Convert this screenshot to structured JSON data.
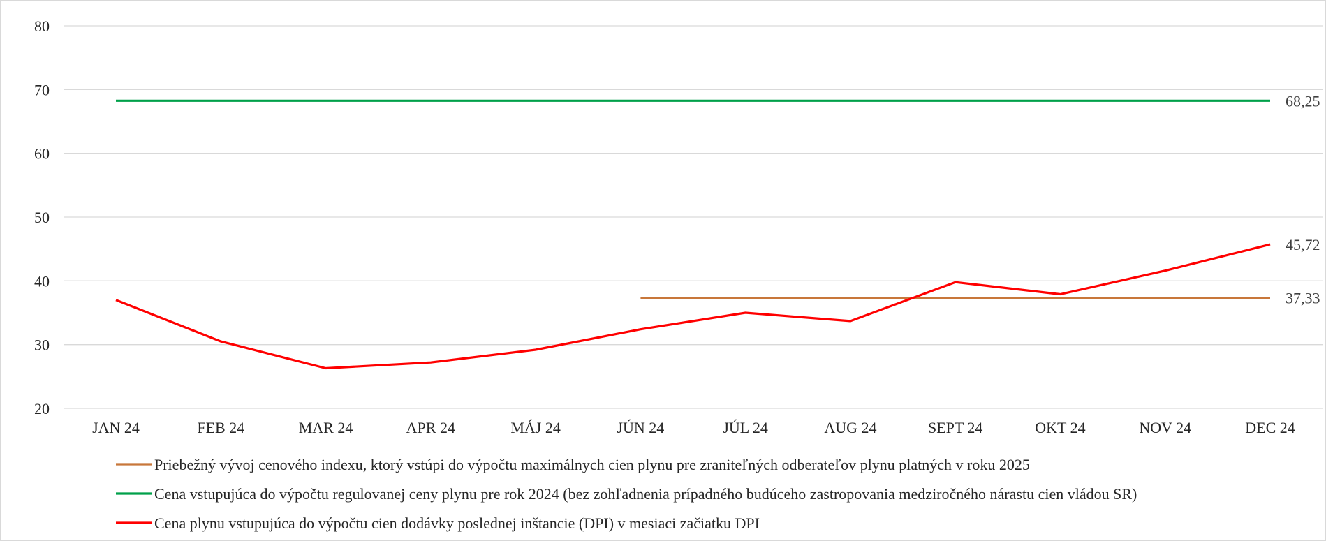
{
  "chart_data": {
    "type": "line",
    "title": "",
    "xlabel": "",
    "ylabel": "",
    "categories": [
      "JAN 24",
      "FEB 24",
      "MAR 24",
      "APR 24",
      "MÁJ 24",
      "JÚN 24",
      "JÚL 24",
      "AUG 24",
      "SEPT 24",
      "OKT 24",
      "NOV 24",
      "DEC 24"
    ],
    "y_ticks": [
      "20",
      "30",
      "40",
      "50",
      "60",
      "70",
      "80"
    ],
    "ylim": [
      20,
      80
    ],
    "grid": true,
    "legend_position": "bottom",
    "series": [
      {
        "name": "Priebežný vývoj cenového indexu, ktorý vstúpi do výpočtu maximálnych cien plynu pre zraniteľných odberateľov plynu platných v roku 2025",
        "color": "#c8773a",
        "values": [
          null,
          null,
          null,
          null,
          null,
          37.33,
          37.33,
          37.33,
          37.33,
          37.33,
          37.33,
          37.33
        ],
        "end_label": "37,33"
      },
      {
        "name": "Cena vstupujúca do výpočtu regulovanej ceny plynu pre rok 2024 (bez zohľadnenia prípadného budúceho zastropovania medziročného nárastu cien vládou SR)",
        "color": "#00a04a",
        "values": [
          68.25,
          68.25,
          68.25,
          68.25,
          68.25,
          68.25,
          68.25,
          68.25,
          68.25,
          68.25,
          68.25,
          68.25
        ],
        "end_label": "68,25"
      },
      {
        "name": "Cena plynu vstupujúca do výpočtu cien dodávky poslednej inštancie (DPI) v mesiaci začiatku DPI",
        "color": "#ff0000",
        "values": [
          37.0,
          30.5,
          26.3,
          27.2,
          29.2,
          32.4,
          35.0,
          33.7,
          39.8,
          37.9,
          41.6,
          45.72
        ],
        "end_label": "45,72"
      }
    ]
  }
}
